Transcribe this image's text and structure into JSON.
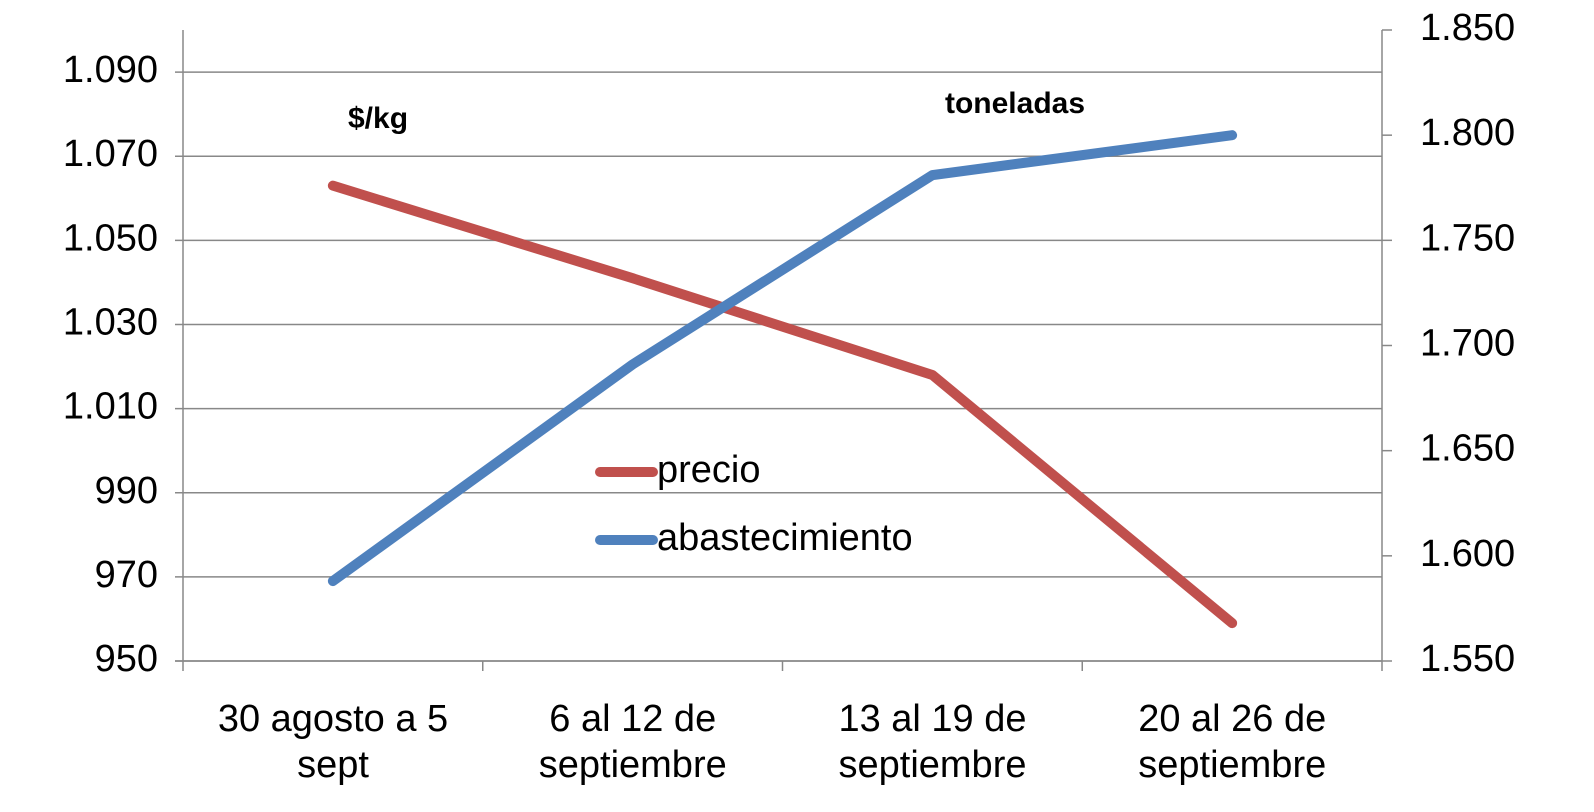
{
  "chart_data": {
    "type": "line",
    "categories": [
      "30 agosto a 5 sept",
      "6 al 12 de septiembre",
      "13 al 19 de septiembre",
      "20 al 26 de septiembre"
    ],
    "series": [
      {
        "name": "precio",
        "color": "#c0504d",
        "values": [
          1063,
          1041,
          1018,
          959
        ]
      },
      {
        "name": "abastecimiento",
        "color": "#4f81bd",
        "axis": "y2",
        "values": [
          1588,
          1691,
          1781,
          1800
        ]
      }
    ],
    "ylim": [
      950,
      1100
    ],
    "yticks": [
      950,
      970,
      990,
      {
        "value": 1010,
        "label": "1.010"
      },
      {
        "value": 1030,
        "label": "1.030"
      },
      {
        "value": 1050,
        "label": "1.050"
      },
      {
        "value": 1070,
        "label": "1.070"
      },
      {
        "value": 1090,
        "label": "1.090"
      }
    ],
    "y2lim": [
      1550,
      1850
    ],
    "y2ticks": [
      {
        "value": 1550,
        "label": "1.550"
      },
      {
        "value": 1600,
        "label": "1.600"
      },
      {
        "value": 1650,
        "label": "1.650"
      },
      {
        "value": 1700,
        "label": "1.700"
      },
      {
        "value": 1750,
        "label": "1.750"
      },
      {
        "value": 1800,
        "label": "1.800"
      },
      {
        "value": 1850,
        "label": "1.850"
      }
    ],
    "annotations": [
      "$/kg",
      "toneladas"
    ],
    "grid": true
  }
}
